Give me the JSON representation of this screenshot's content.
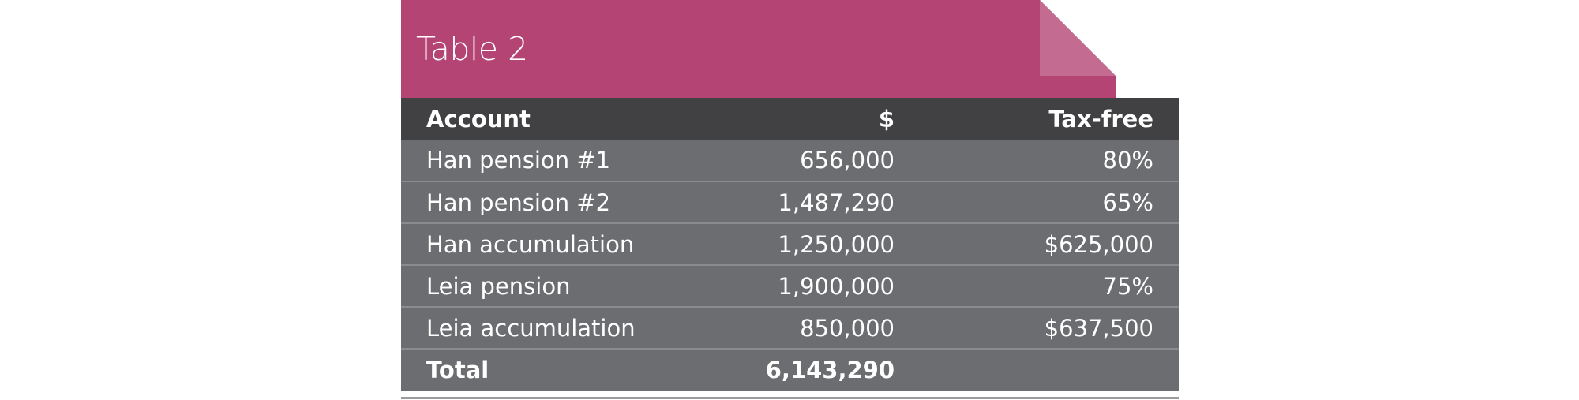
{
  "title": "Table 2",
  "colors": {
    "tab": "#b34474",
    "header": "#414143",
    "row": "#6c6d70"
  },
  "table": {
    "headers": [
      "Account",
      "$",
      "Tax-free"
    ],
    "rows": [
      [
        "Han pension #1",
        "656,000",
        "80%"
      ],
      [
        "Han pension #2",
        "1,487,290",
        "65%"
      ],
      [
        "Han accumulation",
        "1,250,000",
        "$625,000"
      ],
      [
        "Leia pension",
        "1,900,000",
        "75%"
      ],
      [
        "Leia accumulation",
        "850,000",
        "$637,500"
      ]
    ],
    "total": {
      "label": "Total",
      "amount": "6,143,290",
      "tax_free": ""
    }
  }
}
